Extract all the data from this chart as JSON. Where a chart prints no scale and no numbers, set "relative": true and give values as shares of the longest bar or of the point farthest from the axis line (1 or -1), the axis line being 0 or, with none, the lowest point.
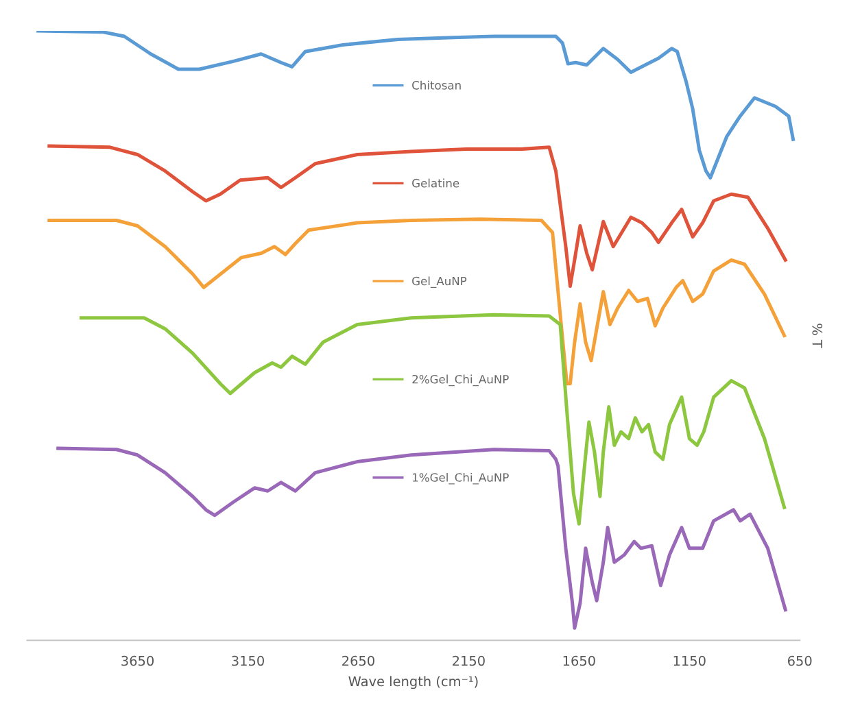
{
  "chart_data": {
    "type": "line",
    "relative": true,
    "xlabel": "Wave length (cm⁻¹)",
    "ylabel": "% T",
    "xlim": [
      4150,
      650
    ],
    "xticks": [
      3650,
      3150,
      2650,
      2150,
      1650,
      1150,
      650
    ],
    "legend": "center",
    "grid": false,
    "series": [
      {
        "name": "Chitosan",
        "color": "#5b9bd5",
        "x": [
          4100,
          3805,
          3710,
          3590,
          3465,
          3370,
          3215,
          3090,
          3000,
          2950,
          2890,
          2720,
          2470,
          2220,
          2035,
          1755,
          1725,
          1700,
          1665,
          1615,
          1540,
          1475,
          1415,
          1350,
          1290,
          1230,
          1205,
          1165,
          1135,
          1105,
          1075,
          1055,
          1010,
          980,
          920,
          855,
          760,
          700,
          680
        ],
        "values": [
          1.0,
          0.998,
          0.991,
          0.962,
          0.937,
          0.937,
          0.95,
          0.962,
          0.948,
          0.941,
          0.966,
          0.977,
          0.986,
          0.989,
          0.991,
          0.991,
          0.98,
          0.946,
          0.948,
          0.944,
          0.971,
          0.953,
          0.932,
          0.944,
          0.955,
          0.971,
          0.966,
          0.917,
          0.872,
          0.804,
          0.77,
          0.759,
          0.8,
          0.827,
          0.86,
          0.89,
          0.876,
          0.86,
          0.822
        ]
      },
      {
        "name": "Gelatine",
        "color": "#e0533b",
        "x": [
          4050,
          3775,
          3650,
          3525,
          3400,
          3340,
          3275,
          3185,
          3120,
          3060,
          3000,
          2935,
          2845,
          2655,
          2410,
          2160,
          1910,
          1785,
          1755,
          1710,
          1690,
          1670,
          1645,
          1615,
          1590,
          1540,
          1495,
          1465,
          1415,
          1365,
          1320,
          1290,
          1230,
          1185,
          1135,
          1090,
          1040,
          960,
          885,
          795,
          715
        ],
        "values": [
          0.811,
          0.809,
          0.797,
          0.77,
          0.736,
          0.721,
          0.732,
          0.755,
          0.757,
          0.759,
          0.743,
          0.759,
          0.782,
          0.797,
          0.802,
          0.806,
          0.806,
          0.809,
          0.77,
          0.646,
          0.581,
          0.624,
          0.68,
          0.635,
          0.608,
          0.687,
          0.646,
          0.664,
          0.694,
          0.685,
          0.669,
          0.653,
          0.685,
          0.707,
          0.662,
          0.685,
          0.721,
          0.732,
          0.727,
          0.676,
          0.624
        ]
      },
      {
        "name": "Gel_AuNP",
        "color": "#f5a13a",
        "x": [
          4050,
          3745,
          3650,
          3525,
          3400,
          3350,
          3180,
          3090,
          3030,
          2980,
          2935,
          2875,
          2655,
          2410,
          2100,
          1820,
          1770,
          1735,
          1705,
          1690,
          1670,
          1645,
          1620,
          1595,
          1570,
          1540,
          1510,
          1475,
          1425,
          1385,
          1340,
          1305,
          1270,
          1210,
          1180,
          1135,
          1090,
          1040,
          960,
          900,
          810,
          720
        ],
        "values": [
          0.689,
          0.689,
          0.68,
          0.646,
          0.601,
          0.579,
          0.628,
          0.635,
          0.646,
          0.633,
          0.651,
          0.673,
          0.685,
          0.689,
          0.691,
          0.689,
          0.669,
          0.534,
          0.421,
          0.421,
          0.489,
          0.552,
          0.489,
          0.459,
          0.511,
          0.572,
          0.518,
          0.545,
          0.574,
          0.556,
          0.561,
          0.516,
          0.545,
          0.579,
          0.59,
          0.556,
          0.568,
          0.606,
          0.624,
          0.617,
          0.568,
          0.5
        ]
      },
      {
        "name": "2%Gel_Chi_AuNP",
        "color": "#8dc63f",
        "x": [
          3905,
          3620,
          3525,
          3400,
          3275,
          3230,
          3120,
          3040,
          3000,
          2950,
          2890,
          2810,
          2655,
          2410,
          2035,
          1785,
          1735,
          1705,
          1675,
          1650,
          1625,
          1605,
          1580,
          1555,
          1540,
          1515,
          1490,
          1460,
          1425,
          1395,
          1365,
          1335,
          1305,
          1270,
          1240,
          1185,
          1150,
          1115,
          1085,
          1040,
          960,
          900,
          810,
          720
        ],
        "values": [
          0.529,
          0.529,
          0.511,
          0.471,
          0.421,
          0.405,
          0.439,
          0.455,
          0.448,
          0.466,
          0.453,
          0.489,
          0.518,
          0.529,
          0.534,
          0.532,
          0.518,
          0.376,
          0.241,
          0.191,
          0.286,
          0.358,
          0.309,
          0.236,
          0.309,
          0.383,
          0.32,
          0.342,
          0.331,
          0.365,
          0.342,
          0.354,
          0.309,
          0.297,
          0.354,
          0.399,
          0.331,
          0.32,
          0.342,
          0.399,
          0.426,
          0.414,
          0.331,
          0.218
        ]
      },
      {
        "name": "1%Gel_Chi_AuNP",
        "color": "#9a68b8",
        "x": [
          4010,
          3745,
          3650,
          3525,
          3400,
          3340,
          3300,
          3215,
          3120,
          3060,
          3000,
          2935,
          2845,
          2655,
          2410,
          2035,
          1785,
          1755,
          1745,
          1710,
          1680,
          1670,
          1645,
          1620,
          1590,
          1570,
          1540,
          1520,
          1490,
          1445,
          1400,
          1370,
          1320,
          1280,
          1240,
          1185,
          1150,
          1090,
          1040,
          950,
          920,
          875,
          795,
          715
        ],
        "values": [
          0.315,
          0.313,
          0.304,
          0.275,
          0.236,
          0.214,
          0.205,
          0.227,
          0.25,
          0.245,
          0.259,
          0.245,
          0.275,
          0.293,
          0.304,
          0.313,
          0.311,
          0.297,
          0.286,
          0.151,
          0.061,
          0.02,
          0.061,
          0.151,
          0.095,
          0.065,
          0.128,
          0.185,
          0.128,
          0.14,
          0.162,
          0.151,
          0.155,
          0.09,
          0.14,
          0.185,
          0.151,
          0.151,
          0.196,
          0.214,
          0.196,
          0.207,
          0.151,
          0.05
        ]
      }
    ]
  }
}
